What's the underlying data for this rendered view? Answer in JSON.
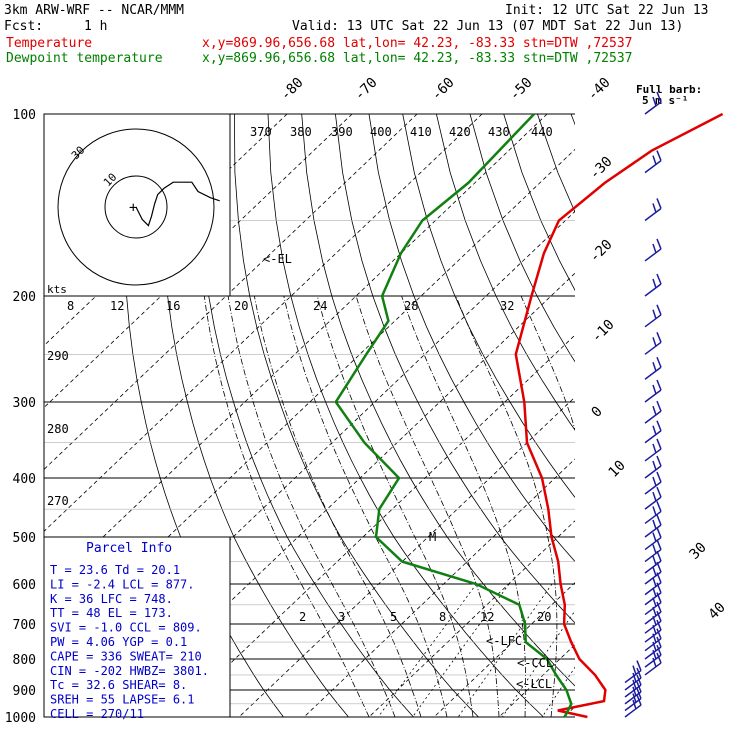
{
  "header": {
    "model": "3km ARW-WRF -- NCAR/MMM",
    "init": "Init: 12 UTC Sat 22 Jun 13",
    "fcst_label": "Fcst:",
    "fcst_value": "1 h",
    "valid": "Valid: 13 UTC Sat 22 Jun 13 (07 MDT Sat 22 Jun 13)",
    "temp_label": "Temperature",
    "temp_loc": "x,y=869.96,656.68   lat,lon= 42.23, -83.33  stn=DTW ,72537",
    "dew_label": "Dewpoint temperature",
    "dew_loc": "x,y=869.96,656.68   lat,lon= 42.23, -83.33  stn=DTW ,72537"
  },
  "colors": {
    "temperature": "#e00000",
    "dewpoint": "#108010",
    "barbs": "#1c1ca0",
    "parcel_info": "#0000cc"
  },
  "hodograph": {
    "kts_label": "kts",
    "ring_labels": [
      "10",
      "30"
    ]
  },
  "wind_legend": {
    "line1": "Full barb:",
    "line2": "5 m s⁻¹"
  },
  "annotations": {
    "el": "<-EL",
    "lfc": "<-LFC",
    "lcl": "<-LCL",
    "ccl": "<-CCL",
    "m": "M"
  },
  "parcel_info": {
    "title": "Parcel Info",
    "rows": [
      "T   =   23.6  Td =  20.1",
      "LI  =   -2.4  LCL =  877.",
      "K   =     36  LFC =  748.",
      "TT  =     48  EL  =  173.",
      "SVI =   -1.0  CCL =  809.",
      "PW  =   4.06  YGP =   0.1",
      "CAPE =   336  SWEAT=  210",
      "CIN  =  -202  HWBZ= 3801.",
      "Tc  =   32.6  SHEAR=   8.",
      "SREH =    55  LAPSE=  6.1",
      "CELL = 270/11"
    ]
  },
  "chart_data": {
    "type": "line",
    "title": "",
    "ylabel": "",
    "xlabel": "",
    "pressure_ticks": [
      "100",
      "200",
      "300",
      "400",
      "500",
      "600",
      "700",
      "800",
      "900",
      "1000"
    ],
    "isotherm_labels": [
      "-80",
      "-70",
      "-60",
      "-50",
      "-40",
      "-30",
      "-20",
      "-10",
      "0",
      "10",
      "30",
      "40"
    ],
    "theta_labels": [
      "370",
      "380",
      "390",
      "400",
      "410",
      "420",
      "430",
      "440",
      "290",
      "280",
      "270"
    ],
    "mixing_ratio_labels": [
      "2",
      "3",
      "5",
      "8",
      "12",
      "20"
    ],
    "theta_e_labels": [
      "8",
      "12",
      "16",
      "20",
      "24",
      "28",
      "32"
    ],
    "ylim": [
      1000,
      100
    ],
    "series": [
      {
        "name": "Temperature",
        "points": [
          [
            100,
            -53
          ],
          [
            115,
            -58
          ],
          [
            130,
            -60
          ],
          [
            150,
            -61
          ],
          [
            170,
            -58
          ],
          [
            200,
            -53
          ],
          [
            250,
            -46
          ],
          [
            300,
            -37
          ],
          [
            350,
            -30
          ],
          [
            400,
            -22
          ],
          [
            450,
            -16
          ],
          [
            500,
            -11
          ],
          [
            550,
            -6
          ],
          [
            600,
            -2
          ],
          [
            650,
            2
          ],
          [
            700,
            5
          ],
          [
            750,
            9
          ],
          [
            800,
            13
          ],
          [
            850,
            18
          ],
          [
            900,
            22
          ],
          [
            940,
            23.6
          ],
          [
            975,
            18
          ],
          [
            1000,
            23.6
          ]
        ]
      },
      {
        "name": "Dewpoint temperature",
        "points": [
          [
            100,
            -82
          ],
          [
            130,
            -81
          ],
          [
            150,
            -82
          ],
          [
            170,
            -80
          ],
          [
            200,
            -76
          ],
          [
            220,
            -71
          ],
          [
            250,
            -69
          ],
          [
            300,
            -66
          ],
          [
            350,
            -55
          ],
          [
            400,
            -44
          ],
          [
            450,
            -42
          ],
          [
            500,
            -38
          ],
          [
            550,
            -30
          ],
          [
            600,
            -15
          ],
          [
            650,
            -5
          ],
          [
            700,
            -1
          ],
          [
            750,
            2
          ],
          [
            800,
            8
          ],
          [
            850,
            12
          ],
          [
            900,
            16
          ],
          [
            950,
            19
          ],
          [
            1000,
            20.1
          ]
        ]
      }
    ],
    "hodograph_points": [
      [
        0,
        0
      ],
      [
        2,
        -4
      ],
      [
        4,
        -6
      ],
      [
        5,
        -3
      ],
      [
        6,
        1
      ],
      [
        7,
        4
      ],
      [
        9,
        6
      ],
      [
        12,
        8
      ],
      [
        18,
        8
      ],
      [
        20,
        5
      ],
      [
        24,
        3
      ],
      [
        27,
        2
      ]
    ],
    "wind_barbs_pressure": [
      100,
      125,
      150,
      175,
      200,
      225,
      250,
      275,
      300,
      325,
      350,
      375,
      400,
      425,
      450,
      475,
      500,
      525,
      550,
      575,
      600,
      625,
      650,
      675,
      700,
      725,
      750,
      775,
      800,
      825,
      850,
      875,
      900,
      925,
      950,
      975,
      1000
    ]
  }
}
